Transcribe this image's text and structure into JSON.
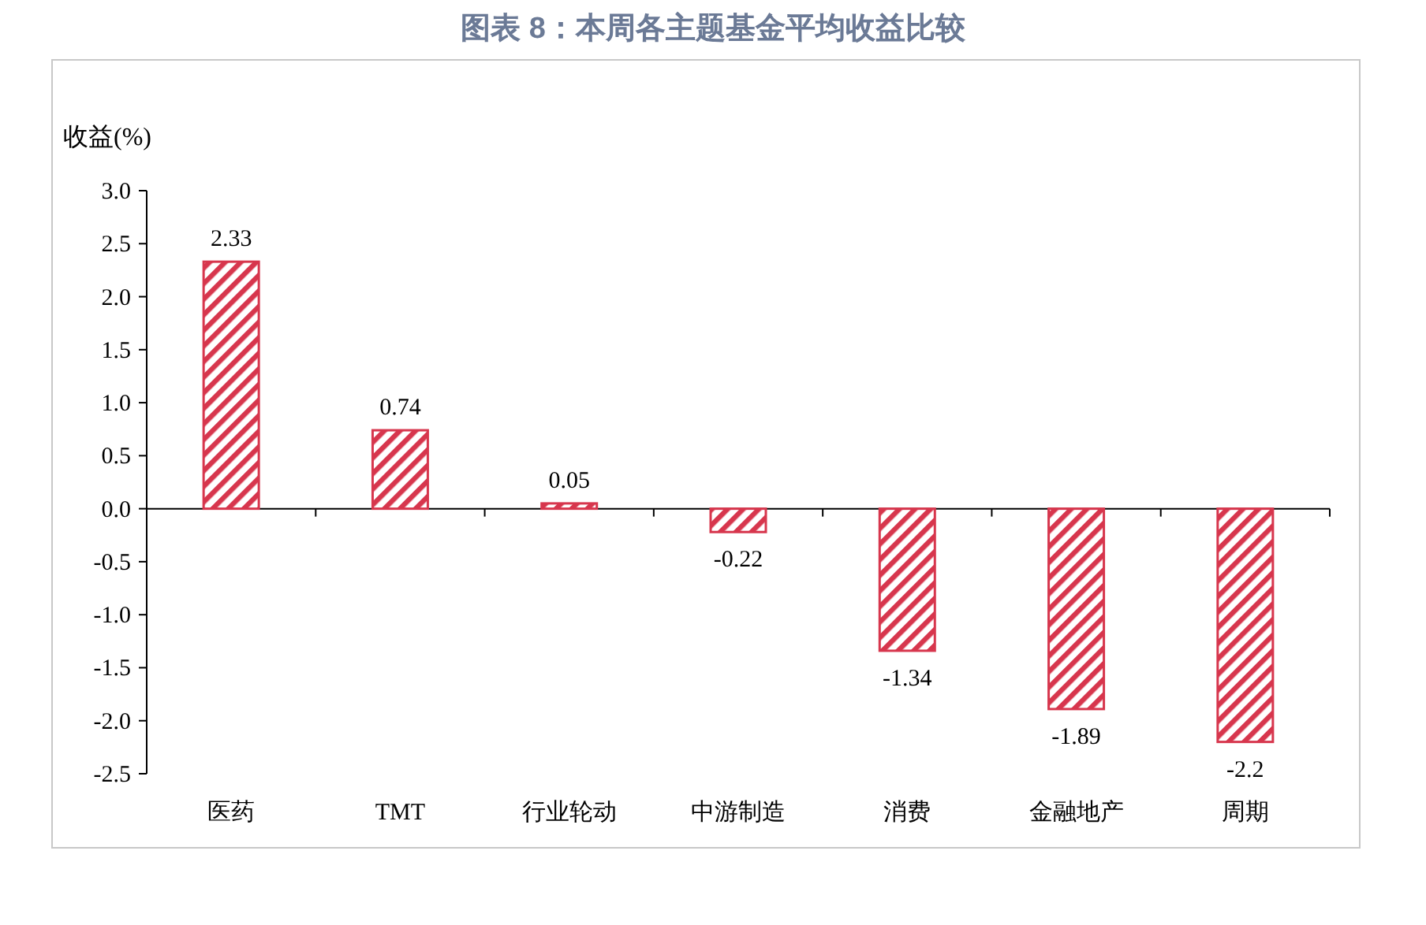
{
  "chart_data": {
    "type": "bar",
    "title": "图表 8：本周各主题基金平均收益比较",
    "ylabel": "收益(%)",
    "categories": [
      "医药",
      "TMT",
      "行业轮动",
      "中游制造",
      "消费",
      "金融地产",
      "周期"
    ],
    "values": [
      2.33,
      0.74,
      0.05,
      -0.22,
      -1.34,
      -1.89,
      -2.2
    ],
    "color": "#d7364d",
    "ylim": [
      -2.5,
      3
    ],
    "yticks": [
      {
        "value": 3,
        "label": "3.0"
      },
      {
        "value": 2.5,
        "label": "2.5"
      },
      {
        "value": 2,
        "label": "2.0"
      },
      {
        "value": 1.5,
        "label": "1.5"
      },
      {
        "value": 1,
        "label": "1.0"
      },
      {
        "value": 0.5,
        "label": "0.5"
      },
      {
        "value": 0,
        "label": "0.0"
      },
      {
        "value": -0.5,
        "label": "-0.5"
      },
      {
        "value": -1,
        "label": "-1.0"
      },
      {
        "value": -1.5,
        "label": "-1.5"
      },
      {
        "value": -2,
        "label": "-2.0"
      },
      {
        "value": -2.5,
        "label": "-2.5"
      }
    ],
    "data_labels": true
  }
}
